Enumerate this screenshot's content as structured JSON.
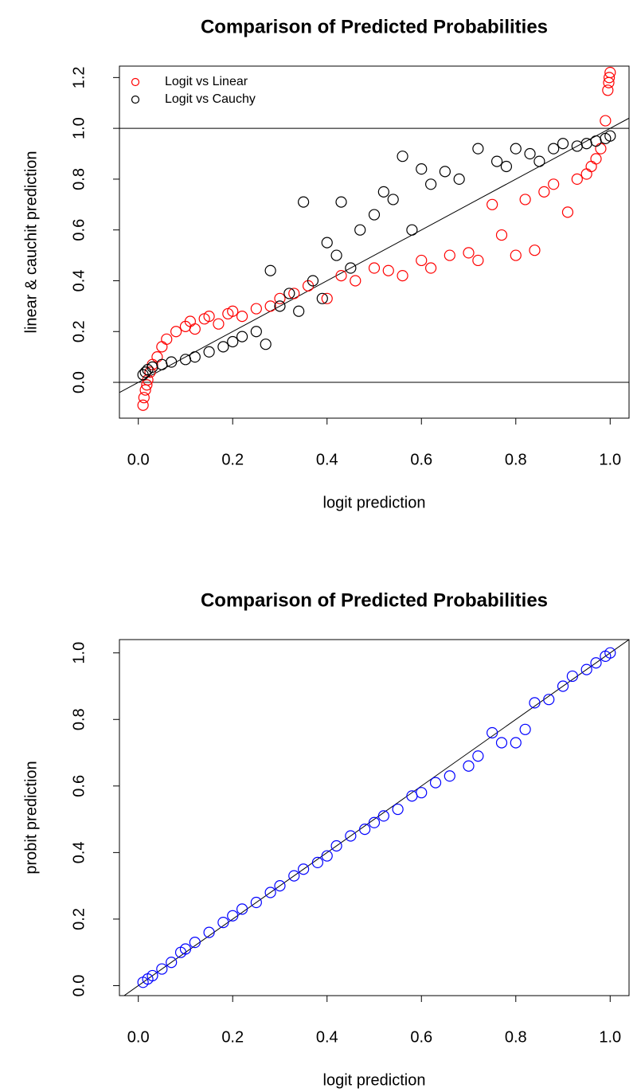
{
  "chart_data": [
    {
      "type": "scatter",
      "title": "Comparison of Predicted Probabilities",
      "xlabel": "logit prediction",
      "ylabel": "linear & cauchit prediction",
      "xlim": [
        -0.04,
        1.04
      ],
      "ylim": [
        -0.141,
        1.245
      ],
      "xticks": [
        {
          "value": 0,
          "label": "0.0"
        },
        0.2,
        0.4,
        0.6,
        0.8,
        {
          "value": 1,
          "label": "1.0"
        }
      ],
      "yticks": [
        {
          "value": 0,
          "label": "0.0"
        },
        0.2,
        0.4,
        0.6,
        0.8,
        {
          "value": 1,
          "label": "1.0"
        },
        1.2
      ],
      "hlines": [
        0,
        1
      ],
      "abline": [
        0,
        1
      ],
      "legend": "topleft",
      "series": [
        {
          "name": "Logit vs Linear",
          "color": "#ff0000",
          "x": [
            0.01,
            0.012,
            0.015,
            0.018,
            0.02,
            0.025,
            0.03,
            0.04,
            0.05,
            0.06,
            0.08,
            0.1,
            0.11,
            0.12,
            0.14,
            0.15,
            0.17,
            0.19,
            0.2,
            0.22,
            0.25,
            0.28,
            0.3,
            0.33,
            0.36,
            0.4,
            0.43,
            0.46,
            0.5,
            0.53,
            0.56,
            0.6,
            0.62,
            0.66,
            0.7,
            0.72,
            0.75,
            0.77,
            0.8,
            0.82,
            0.84,
            0.86,
            0.88,
            0.91,
            0.93,
            0.95,
            0.96,
            0.97,
            0.98,
            0.99,
            0.995,
            0.998,
            1.0,
            0.997
          ],
          "values": [
            -0.09,
            -0.06,
            -0.03,
            -0.01,
            0.01,
            0.04,
            0.07,
            0.1,
            0.14,
            0.17,
            0.2,
            0.22,
            0.24,
            0.21,
            0.25,
            0.26,
            0.23,
            0.27,
            0.28,
            0.26,
            0.29,
            0.3,
            0.33,
            0.35,
            0.38,
            0.33,
            0.42,
            0.4,
            0.45,
            0.44,
            0.42,
            0.48,
            0.45,
            0.5,
            0.51,
            0.48,
            0.7,
            0.58,
            0.5,
            0.72,
            0.52,
            0.75,
            0.78,
            0.67,
            0.8,
            0.82,
            0.85,
            0.88,
            0.92,
            1.03,
            1.15,
            1.2,
            1.22,
            1.18
          ]
        },
        {
          "name": "Logit vs Cauchy",
          "color": "#000000",
          "x": [
            0.01,
            0.015,
            0.02,
            0.03,
            0.05,
            0.07,
            0.1,
            0.12,
            0.15,
            0.18,
            0.2,
            0.22,
            0.25,
            0.27,
            0.28,
            0.3,
            0.32,
            0.34,
            0.35,
            0.37,
            0.39,
            0.4,
            0.42,
            0.43,
            0.45,
            0.47,
            0.5,
            0.52,
            0.54,
            0.56,
            0.58,
            0.6,
            0.62,
            0.65,
            0.68,
            0.72,
            0.76,
            0.78,
            0.8,
            0.83,
            0.85,
            0.88,
            0.9,
            0.93,
            0.95,
            0.97,
            0.99,
            1.0
          ],
          "values": [
            0.03,
            0.04,
            0.05,
            0.06,
            0.07,
            0.08,
            0.09,
            0.1,
            0.12,
            0.14,
            0.16,
            0.18,
            0.2,
            0.15,
            0.44,
            0.3,
            0.35,
            0.28,
            0.71,
            0.4,
            0.33,
            0.55,
            0.5,
            0.71,
            0.45,
            0.6,
            0.66,
            0.75,
            0.72,
            0.89,
            0.6,
            0.84,
            0.78,
            0.83,
            0.8,
            0.92,
            0.87,
            0.85,
            0.92,
            0.9,
            0.87,
            0.92,
            0.94,
            0.93,
            0.94,
            0.95,
            0.96,
            0.97
          ]
        }
      ]
    },
    {
      "type": "scatter",
      "title": "Comparison of Predicted Probabilities",
      "xlabel": "logit prediction",
      "ylabel": "probit prediction",
      "xlim": [
        -0.04,
        1.04
      ],
      "ylim": [
        -0.03,
        1.04
      ],
      "xticks": [
        {
          "value": 0,
          "label": "0.0"
        },
        0.2,
        0.4,
        0.6,
        0.8,
        {
          "value": 1,
          "label": "1.0"
        }
      ],
      "yticks": [
        {
          "value": 0,
          "label": "0.0"
        },
        0.2,
        0.4,
        0.6,
        0.8,
        {
          "value": 1,
          "label": "1.0"
        }
      ],
      "abline": [
        0,
        1
      ],
      "series": [
        {
          "color": "#0000ff",
          "x": [
            0.01,
            0.02,
            0.03,
            0.05,
            0.07,
            0.09,
            0.1,
            0.12,
            0.15,
            0.18,
            0.2,
            0.22,
            0.25,
            0.28,
            0.3,
            0.33,
            0.35,
            0.38,
            0.4,
            0.42,
            0.45,
            0.48,
            0.5,
            0.52,
            0.55,
            0.58,
            0.6,
            0.63,
            0.66,
            0.7,
            0.72,
            0.75,
            0.77,
            0.8,
            0.82,
            0.84,
            0.87,
            0.9,
            0.92,
            0.95,
            0.97,
            0.99,
            1.0
          ],
          "values": [
            0.01,
            0.02,
            0.03,
            0.05,
            0.07,
            0.1,
            0.11,
            0.13,
            0.16,
            0.19,
            0.21,
            0.23,
            0.25,
            0.28,
            0.3,
            0.33,
            0.35,
            0.37,
            0.39,
            0.42,
            0.45,
            0.47,
            0.49,
            0.51,
            0.53,
            0.57,
            0.58,
            0.61,
            0.63,
            0.66,
            0.69,
            0.76,
            0.73,
            0.73,
            0.77,
            0.85,
            0.86,
            0.9,
            0.93,
            0.95,
            0.97,
            0.99,
            1.0
          ]
        }
      ]
    }
  ]
}
